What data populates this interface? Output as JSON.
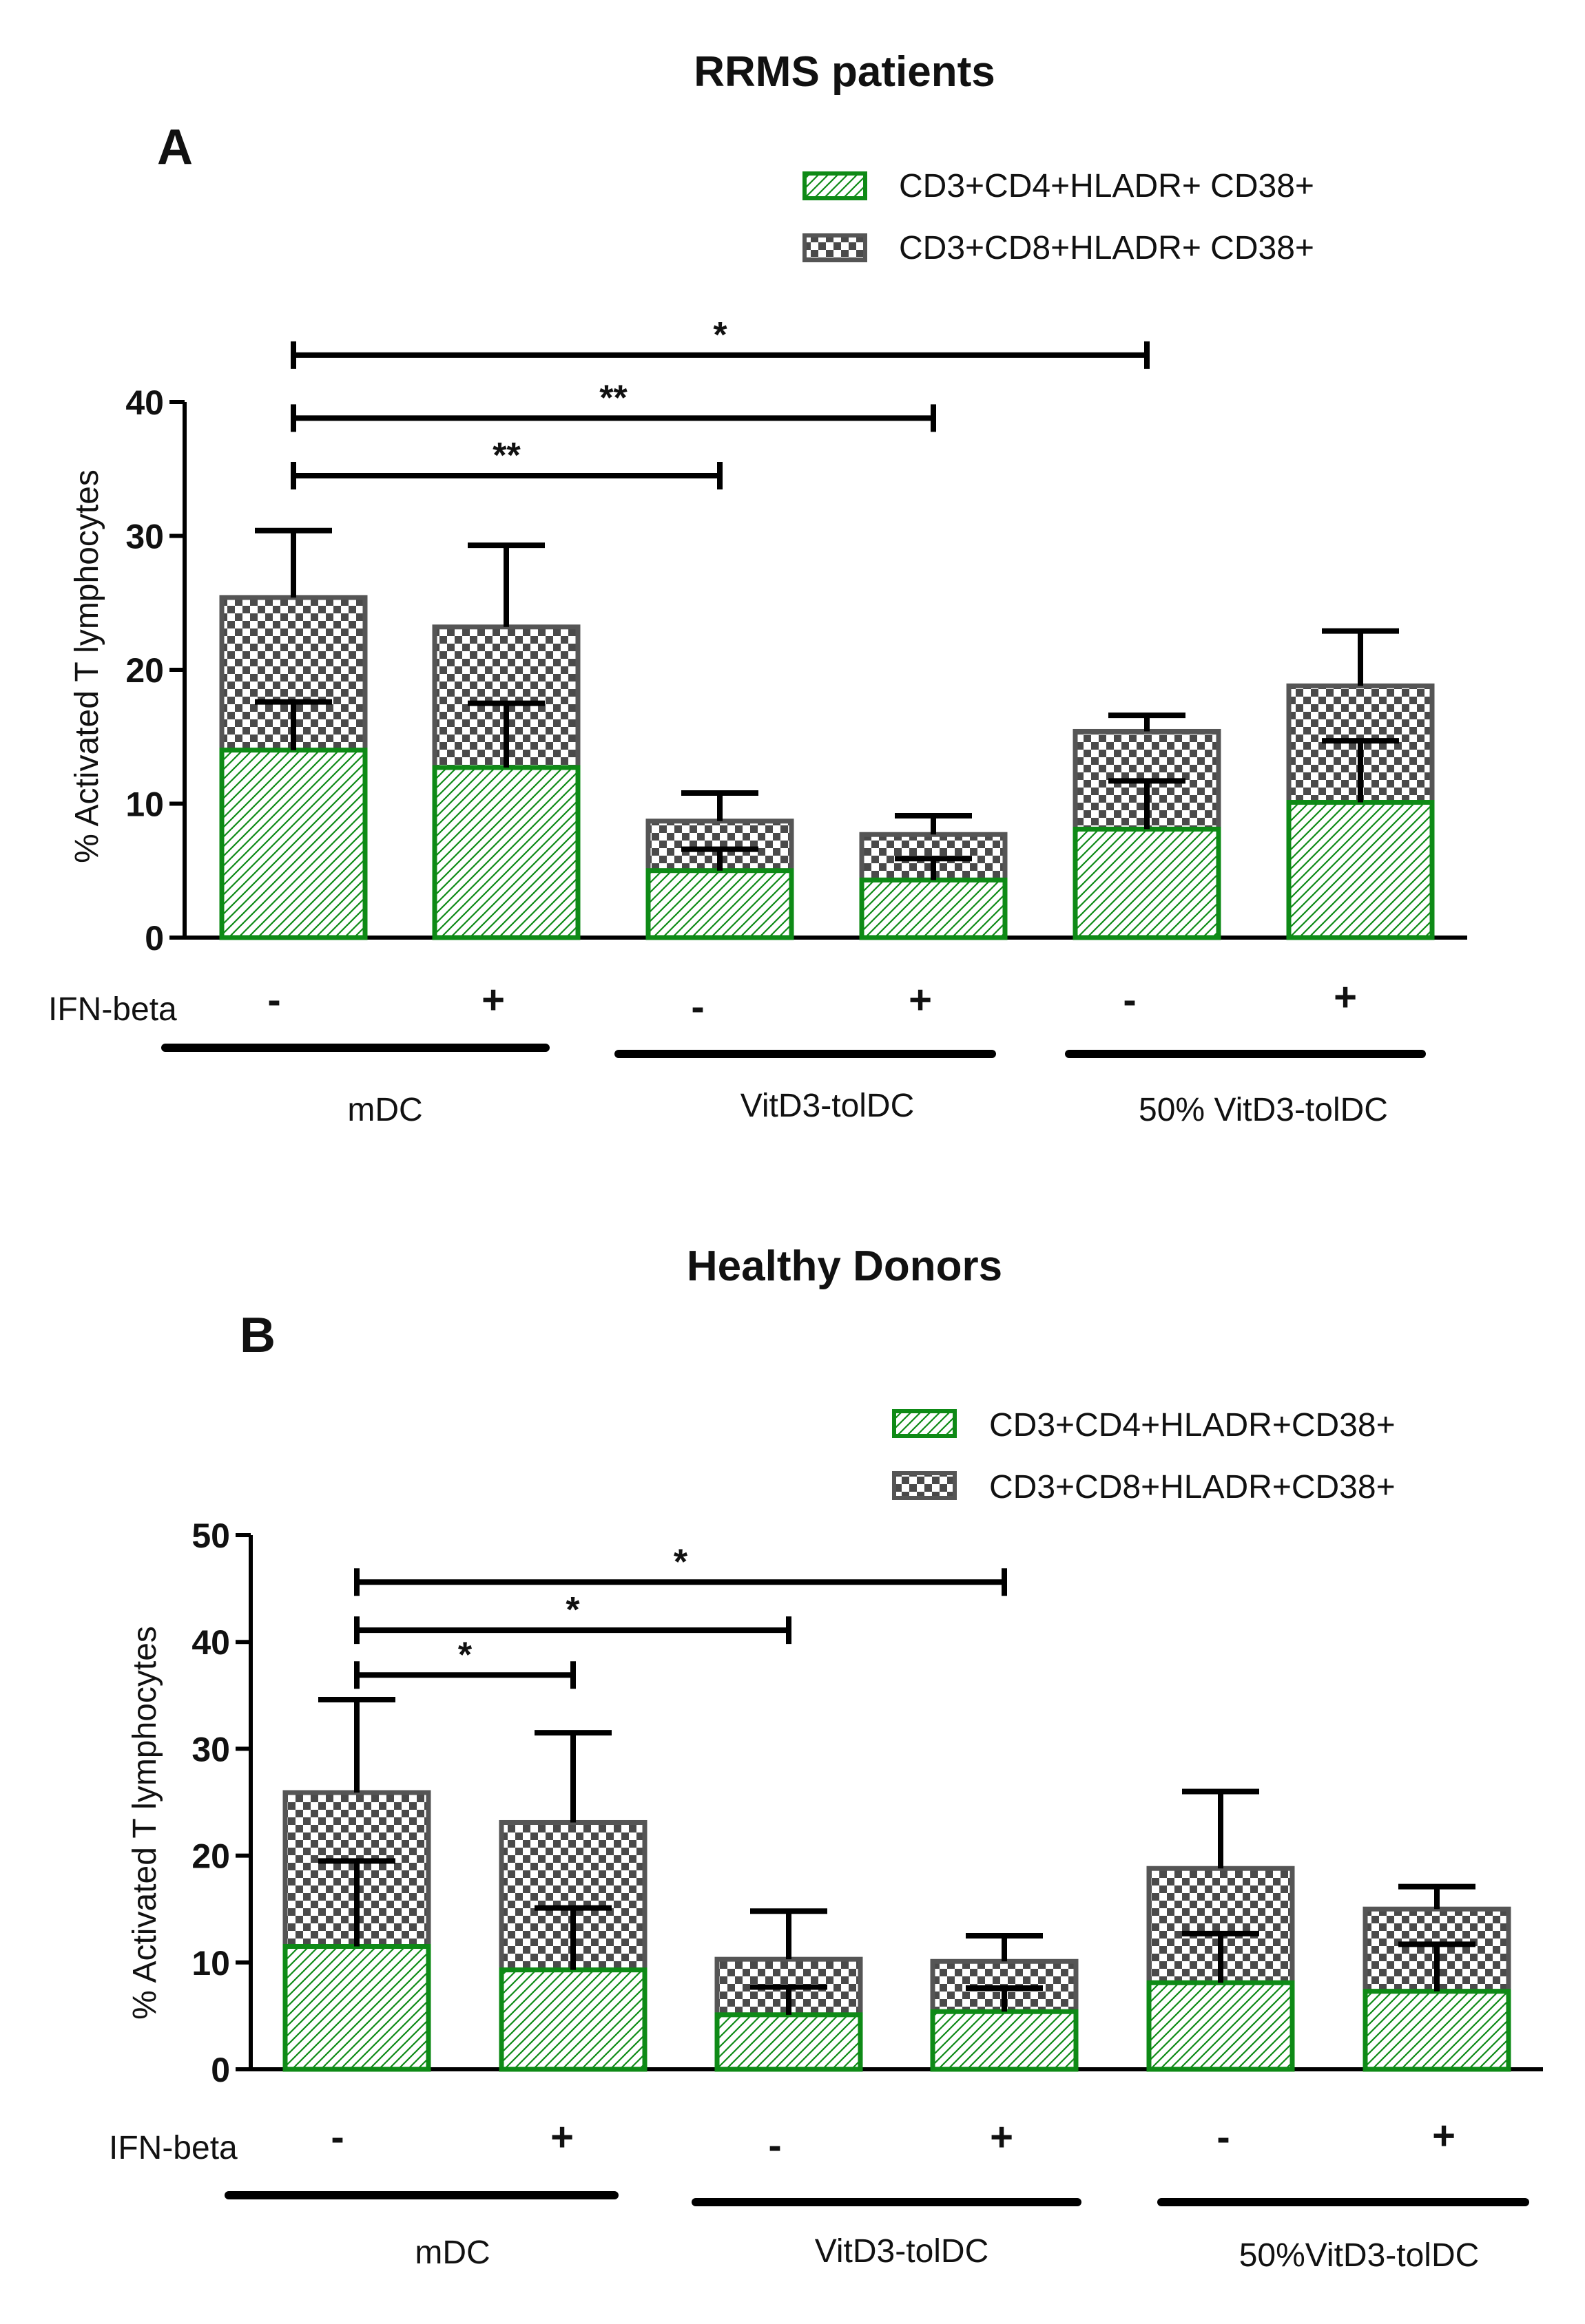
{
  "chart_data": [
    {
      "type": "stacked-bar",
      "panel_letter": "A",
      "title": "RRMS patients",
      "ylabel": "% Activated T lymphocytes",
      "ylim": [
        0,
        40
      ],
      "yticks": [
        0,
        10,
        20,
        30,
        40
      ],
      "treatment_label": "IFN-beta",
      "categories": [
        "-",
        "+",
        "-",
        "+",
        "-",
        "+"
      ],
      "groups": [
        {
          "label": "mDC",
          "bars": [
            0,
            1
          ]
        },
        {
          "label": "VitD3-tolDC",
          "bars": [
            2,
            3
          ]
        },
        {
          "label": "50% VitD3-tolDC",
          "bars": [
            4,
            5
          ]
        }
      ],
      "series": [
        {
          "name": "CD3+CD4+HLADR+ CD38+",
          "pattern": "hatch",
          "color": "#0e8a16",
          "values": [
            14,
            12.7,
            5,
            4.3,
            8.1,
            10.1
          ],
          "errors": [
            3.6,
            4.8,
            1.6,
            1.6,
            3.6,
            4.6
          ]
        },
        {
          "name": "CD3+CD8+HLADR+ CD38+",
          "pattern": "checker",
          "color": "#555555",
          "values": [
            11.4,
            10.5,
            3.7,
            3.4,
            7.3,
            8.7
          ],
          "errors": [
            5.0,
            6.1,
            2.1,
            1.4,
            1.2,
            4.1
          ]
        }
      ],
      "significance": [
        {
          "from": 0,
          "to": 4,
          "label": "*",
          "y": 43.5
        },
        {
          "from": 0,
          "to": 3,
          "label": "**",
          "y": 38.8
        },
        {
          "from": 0,
          "to": 2,
          "label": "**",
          "y": 34.5
        }
      ]
    },
    {
      "type": "stacked-bar",
      "panel_letter": "B",
      "title": "Healthy Donors",
      "ylabel": "% Activated T lymphocytes",
      "ylim": [
        0,
        50
      ],
      "yticks": [
        0,
        10,
        20,
        30,
        40,
        50
      ],
      "treatment_label": "IFN-beta",
      "categories": [
        "-",
        "+",
        "-",
        "+",
        "-",
        "+"
      ],
      "groups": [
        {
          "label": "mDC",
          "bars": [
            0,
            1
          ]
        },
        {
          "label": "VitD3-tolDC",
          "bars": [
            2,
            3
          ]
        },
        {
          "label": "50%VitD3-tolDC",
          "bars": [
            4,
            5
          ]
        }
      ],
      "series": [
        {
          "name": "CD3+CD4+HLADR+CD38+",
          "pattern": "hatch",
          "color": "#0e8a16",
          "values": [
            11.5,
            9.3,
            5.1,
            5.4,
            8.1,
            7.3
          ],
          "errors": [
            8.0,
            5.8,
            2.6,
            2.2,
            4.6,
            4.4
          ]
        },
        {
          "name": "CD3+CD8+HLADR+CD38+",
          "pattern": "checker",
          "color": "#555555",
          "values": [
            14.4,
            13.8,
            5.2,
            4.7,
            10.7,
            7.7
          ],
          "errors": [
            8.7,
            8.4,
            4.5,
            2.4,
            7.2,
            2.1
          ]
        }
      ],
      "significance": [
        {
          "from": 0,
          "to": 3,
          "label": "*",
          "y": 45.6
        },
        {
          "from": 0,
          "to": 2,
          "label": "*",
          "y": 41.1
        },
        {
          "from": 0,
          "to": 1,
          "label": "*",
          "y": 36.9
        }
      ]
    }
  ]
}
